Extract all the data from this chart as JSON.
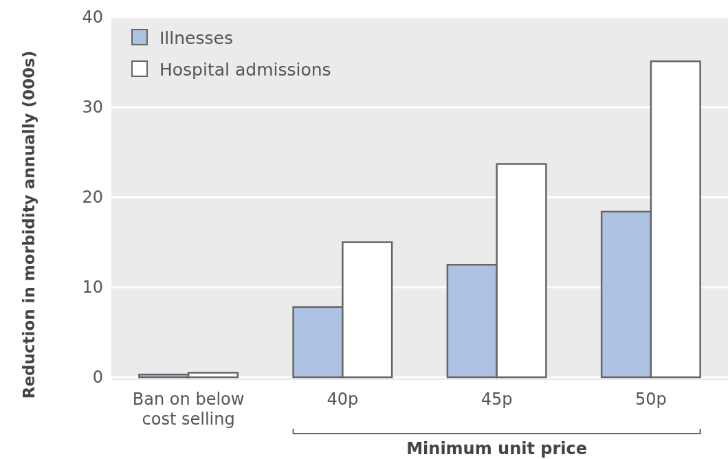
{
  "chart_data": {
    "type": "bar",
    "xlabel": "Minimum unit price",
    "ylabel": "Reduction in morbidity annually (000s)",
    "categories": [
      "Ban on below cost selling",
      "40p",
      "45p",
      "50p"
    ],
    "series": [
      {
        "name": "Illnesses",
        "color": "#adc2e3",
        "values": [
          0.3,
          7.8,
          12.5,
          18.4
        ]
      },
      {
        "name": "Hospital admissions",
        "color": "#ffffff",
        "values": [
          0.5,
          15.0,
          23.7,
          35.1
        ]
      }
    ],
    "ylim": [
      0,
      40
    ],
    "yticks": [
      0,
      10,
      20,
      30,
      40
    ],
    "grid": "y",
    "legend": "top left"
  }
}
